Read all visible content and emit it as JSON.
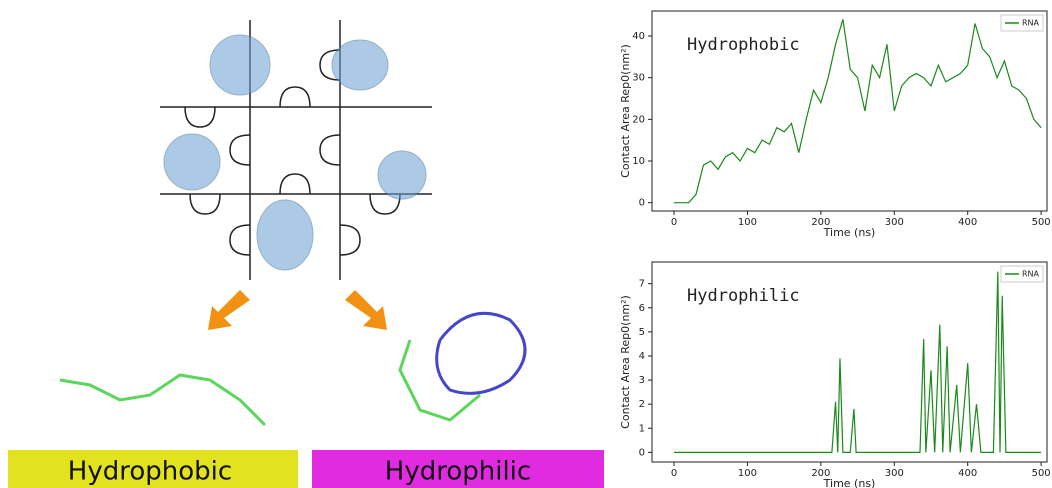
{
  "illustration": {
    "labels": [
      "Hydrophobic",
      "Hydrophilic"
    ]
  },
  "chart_data": [
    {
      "type": "line",
      "annotation": "Hydrophobic",
      "xlabel": "Time (ns)",
      "ylabel": "Contact Area Rep0(nm²)",
      "x": [
        0,
        10,
        20,
        30,
        40,
        50,
        60,
        70,
        80,
        90,
        100,
        110,
        120,
        130,
        140,
        150,
        160,
        170,
        180,
        190,
        200,
        210,
        220,
        230,
        240,
        250,
        260,
        270,
        280,
        290,
        300,
        310,
        320,
        330,
        340,
        350,
        360,
        370,
        380,
        390,
        400,
        410,
        420,
        430,
        440,
        450,
        460,
        470,
        480,
        490,
        500
      ],
      "series": [
        {
          "name": "RNA",
          "color": "#1a8a1a",
          "values": [
            0,
            0,
            0,
            2,
            9,
            10,
            8,
            11,
            12,
            10,
            13,
            12,
            15,
            14,
            18,
            17,
            19,
            12,
            20,
            27,
            24,
            30,
            38,
            44,
            32,
            30,
            22,
            33,
            30,
            38,
            22,
            28,
            30,
            31,
            30,
            28,
            33,
            29,
            30,
            31,
            33,
            43,
            37,
            35,
            30,
            34,
            28,
            27,
            25,
            20,
            18
          ]
        }
      ],
      "xlim": [
        -30,
        508
      ],
      "ylim": [
        -2,
        46
      ],
      "xticks": [
        0,
        100,
        200,
        300,
        400,
        500
      ],
      "yticks": [
        0,
        10,
        20,
        30,
        40
      ],
      "legend": "upper right"
    },
    {
      "type": "line",
      "annotation": "Hydrophilic",
      "xlabel": "Time (ns)",
      "ylabel": "Contact Area Rep0(nm²)",
      "x": [
        0,
        215,
        220,
        223,
        226,
        230,
        240,
        245,
        248,
        335,
        340,
        343,
        350,
        355,
        362,
        366,
        372,
        376,
        385,
        390,
        400,
        405,
        412,
        418,
        435,
        441,
        444,
        447,
        452,
        500
      ],
      "series": [
        {
          "name": "RNA",
          "color": "#1a8a1a",
          "values": [
            0,
            0,
            2.1,
            0,
            3.9,
            0,
            0,
            1.8,
            0,
            0,
            4.7,
            0,
            3.4,
            0,
            5.3,
            0,
            4.4,
            0,
            2.8,
            0,
            3.7,
            0,
            2,
            0,
            0,
            7.5,
            0,
            6.5,
            0,
            0
          ]
        }
      ],
      "xlim": [
        -30,
        508
      ],
      "ylim": [
        -0.4,
        7.9
      ],
      "xticks": [
        0,
        100,
        200,
        300,
        400,
        500
      ],
      "yticks": [
        0,
        1,
        2,
        3,
        4,
        5,
        6,
        7
      ],
      "legend": "upper right"
    }
  ]
}
